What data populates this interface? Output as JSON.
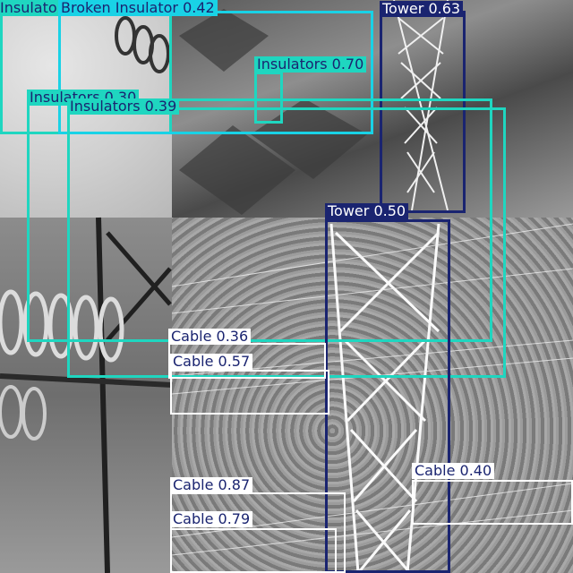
{
  "image": {
    "type": "object-detection-mosaic",
    "tiles": [
      {
        "name": "insulator-sky",
        "tone": "light"
      },
      {
        "name": "tower-roofs",
        "tone": "mixed"
      },
      {
        "name": "insulator-closeup",
        "tone": "mid"
      },
      {
        "name": "tower-forest",
        "tone": "mid"
      }
    ]
  },
  "colors": {
    "insulators": "#1fd6c0",
    "broken_insulator": "#19d2e6",
    "tower": "#1a2470",
    "cable": "#ffffff",
    "cable_text": "#1a2470",
    "label_text_dark": "#1a2470"
  },
  "detections": [
    {
      "id": "ins-tl",
      "label": "Insulators 0.51",
      "class": "insulators"
    },
    {
      "id": "broken",
      "label": "Broken Insulator 0.42",
      "class": "broken_insulator"
    },
    {
      "id": "tower-top",
      "label": "Tower 0.63",
      "class": "tower"
    },
    {
      "id": "ins-070",
      "label": "Insulators 0.70",
      "class": "insulators"
    },
    {
      "id": "ins-030",
      "label": "Insulators 0.30",
      "class": "insulators"
    },
    {
      "id": "ins-039",
      "label": "Insulators 0.39",
      "class": "insulators"
    },
    {
      "id": "tower-mid",
      "label": "Tower 0.50",
      "class": "tower"
    },
    {
      "id": "cable-036",
      "label": "Cable 0.36",
      "class": "cable"
    },
    {
      "id": "cable-057",
      "label": "Cable 0.57",
      "class": "cable"
    },
    {
      "id": "cable-040",
      "label": "Cable 0.40",
      "class": "cable"
    },
    {
      "id": "cable-087",
      "label": "Cable 0.87",
      "class": "cable"
    },
    {
      "id": "cable-079",
      "label": "Cable 0.79",
      "class": "cable"
    }
  ]
}
